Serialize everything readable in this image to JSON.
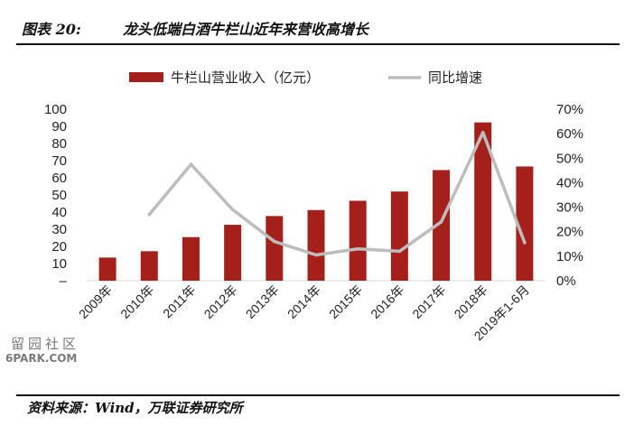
{
  "figure": {
    "number": "图表 20:",
    "title": "龙头低端白酒牛栏山近年来营收高增长",
    "source": "资料来源：Wind，万联证券研究所"
  },
  "watermark": {
    "line1": "留园社区",
    "line2": "6PARK.COM"
  },
  "chart_data": {
    "type": "bar",
    "title": "",
    "categories": [
      "2009年",
      "2010年",
      "2011年",
      "2012年",
      "2013年",
      "2014年",
      "2015年",
      "2016年",
      "2017年",
      "2018年",
      "2019年1-6月"
    ],
    "series": [
      {
        "name": "牛栏山营业收入（亿元）",
        "type": "bar",
        "axis": "left",
        "color": "#a6201b",
        "values": [
          13.5,
          17.2,
          25.4,
          32.6,
          37.7,
          41.2,
          46.6,
          52.0,
          64.5,
          92.3,
          66.6
        ]
      },
      {
        "name": "同比增速",
        "type": "line",
        "axis": "right",
        "color": "#bdbdbd",
        "values": [
          null,
          27,
          47.5,
          29,
          16,
          10.5,
          13,
          12,
          24,
          60.5,
          15.5
        ]
      }
    ],
    "y_left": {
      "min": 0,
      "max": 100,
      "ticks": [
        "–",
        "10",
        "20",
        "30",
        "40",
        "50",
        "60",
        "70",
        "80",
        "90",
        "100"
      ]
    },
    "y_right": {
      "min": 0,
      "max": 70,
      "ticks": [
        "0%",
        "10%",
        "20%",
        "30%",
        "40%",
        "50%",
        "60%",
        "70%"
      ]
    },
    "grid": false,
    "legend_position": "top"
  }
}
